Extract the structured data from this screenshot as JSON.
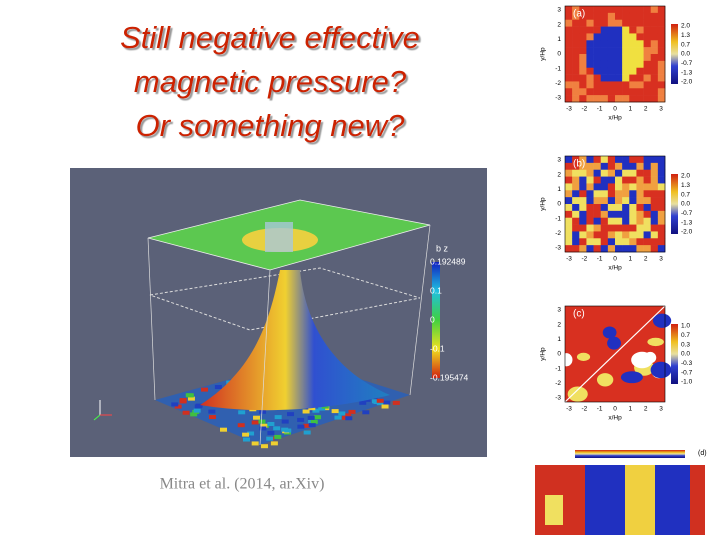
{
  "title_lines": [
    "Still negative effective",
    "magnetic pressure?",
    "Or something new?"
  ],
  "caption": "Mitra et al. (2014, ar.Xiv)",
  "figure": {
    "colorbar_title": "b z",
    "colorbar_labels": [
      "0.192489",
      "0.1",
      "0",
      "-0.1",
      "-0.195474"
    ]
  },
  "panels": [
    {
      "label": "(a)",
      "x_label": "x/Hp",
      "y_label": "y/Hp",
      "x_ticks": [
        "-3",
        "-2",
        "-1",
        "0",
        "1",
        "2",
        "3"
      ],
      "y_ticks": [
        "3",
        "2",
        "1",
        "0",
        "-1",
        "-2",
        "-3"
      ],
      "colorbar_ticks": [
        "2.0",
        "1.3",
        "0.7",
        "0.0",
        "-0.7",
        "-1.3",
        "-2.0"
      ]
    },
    {
      "label": "(b)",
      "x_label": "x/Hp",
      "y_label": "y/Hp",
      "x_ticks": [
        "-3",
        "-2",
        "-1",
        "0",
        "1",
        "2",
        "3"
      ],
      "y_ticks": [
        "3",
        "2",
        "1",
        "0",
        "-1",
        "-2",
        "-3"
      ],
      "colorbar_ticks": [
        "2.0",
        "1.3",
        "0.7",
        "0.0",
        "-0.7",
        "-1.3",
        "-2.0"
      ]
    },
    {
      "label": "(c)",
      "x_label": "x/Hp",
      "y_label": "y/Hp",
      "x_ticks": [
        "-3",
        "-2",
        "-1",
        "0",
        "1",
        "2",
        "3"
      ],
      "y_ticks": [
        "3",
        "2",
        "1",
        "0",
        "-1",
        "-2",
        "-3"
      ],
      "colorbar_ticks": [
        "1.0",
        "0.7",
        "0.3",
        "0.0",
        "-0.3",
        "-0.7",
        "-1.0"
      ]
    }
  ],
  "panel_d": {
    "label": "(d)"
  }
}
